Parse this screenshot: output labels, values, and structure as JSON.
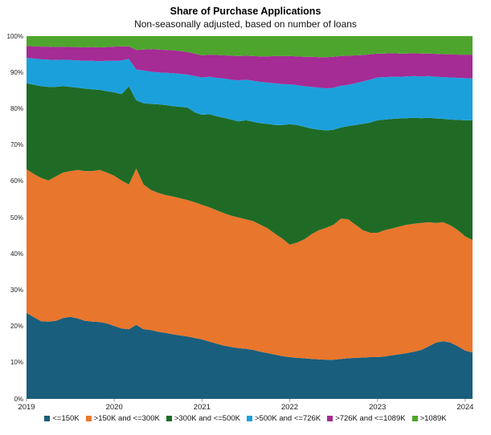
{
  "title": "Share of Purchase Applications",
  "subtitle": "Non-seasonally adjusted, based on number of loans",
  "chart_data": {
    "type": "area",
    "stacked": true,
    "unit": "percent share",
    "grid": false,
    "legend_position": "bottom",
    "ylim": [
      0,
      100
    ],
    "y_ticks": [
      {
        "label": "0%",
        "value": 0
      },
      {
        "label": "10%",
        "value": 10
      },
      {
        "label": "20%",
        "value": 20
      },
      {
        "label": "30%",
        "value": 30
      },
      {
        "label": "40%",
        "value": 40
      },
      {
        "label": "50%",
        "value": 50
      },
      {
        "label": "60%",
        "value": 60
      },
      {
        "label": "70%",
        "value": 70
      },
      {
        "label": "80%",
        "value": 80
      },
      {
        "label": "90%",
        "value": 90
      },
      {
        "label": "100%",
        "value": 100
      }
    ],
    "x_ticks": [
      {
        "label": "2019",
        "month_index": 0
      },
      {
        "label": "2020",
        "month_index": 12
      },
      {
        "label": "2021",
        "month_index": 24
      },
      {
        "label": "2022",
        "month_index": 36
      },
      {
        "label": "2023",
        "month_index": 48
      },
      {
        "label": "2024",
        "month_index": 60
      }
    ],
    "months": [
      "2019-01",
      "2019-02",
      "2019-03",
      "2019-04",
      "2019-05",
      "2019-06",
      "2019-07",
      "2019-08",
      "2019-09",
      "2019-10",
      "2019-11",
      "2019-12",
      "2020-01",
      "2020-02",
      "2020-03",
      "2020-04",
      "2020-05",
      "2020-06",
      "2020-07",
      "2020-08",
      "2020-09",
      "2020-10",
      "2020-11",
      "2020-12",
      "2021-01",
      "2021-02",
      "2021-03",
      "2021-04",
      "2021-05",
      "2021-06",
      "2021-07",
      "2021-08",
      "2021-09",
      "2021-10",
      "2021-11",
      "2021-12",
      "2022-01",
      "2022-02",
      "2022-03",
      "2022-04",
      "2022-05",
      "2022-06",
      "2022-07",
      "2022-08",
      "2022-09",
      "2022-10",
      "2022-11",
      "2022-12",
      "2023-01",
      "2023-02",
      "2023-03",
      "2023-04",
      "2023-05",
      "2023-06",
      "2023-07",
      "2023-08",
      "2023-09",
      "2023-10",
      "2023-11",
      "2023-12",
      "2024-01",
      "2024-02"
    ],
    "series": [
      {
        "name": "<=150K",
        "color": "#1A5E7D",
        "values": [
          23.7,
          22.5,
          21.4,
          21.3,
          21.5,
          22.3,
          22.6,
          22.2,
          21.5,
          21.3,
          21.2,
          20.8,
          20.1,
          19.4,
          19.2,
          20.4,
          19.2,
          19.0,
          18.5,
          18.2,
          17.8,
          17.5,
          17.2,
          16.8,
          16.4,
          15.8,
          15.2,
          14.7,
          14.3,
          14.0,
          13.8,
          13.5,
          13.0,
          12.6,
          12.2,
          11.8,
          11.5,
          11.3,
          11.2,
          11.0,
          10.9,
          10.8,
          10.8,
          11.0,
          11.2,
          11.3,
          11.4,
          11.5,
          11.5,
          11.7,
          12.0,
          12.3,
          12.6,
          13.0,
          13.5,
          14.5,
          15.5,
          15.9,
          15.5,
          14.5,
          13.3,
          12.8
        ]
      },
      {
        "name": ">150K and <=300K",
        "color": "#E8762C",
        "values": [
          39.6,
          39.5,
          39.5,
          38.9,
          39.8,
          40.1,
          40.2,
          40.9,
          41.3,
          41.5,
          41.9,
          41.6,
          41.4,
          40.8,
          39.9,
          43.1,
          39.9,
          38.6,
          38.3,
          38.0,
          38.0,
          37.8,
          37.6,
          37.4,
          37.1,
          37.0,
          36.8,
          36.5,
          36.2,
          36.0,
          35.7,
          35.5,
          35.0,
          34.4,
          33.3,
          32.4,
          31.0,
          31.8,
          32.8,
          34.4,
          35.6,
          36.4,
          37.2,
          38.7,
          38.3,
          36.7,
          35.1,
          34.3,
          34.3,
          34.8,
          35.0,
          35.2,
          35.4,
          35.3,
          35.0,
          34.2,
          33.0,
          32.8,
          32.3,
          32.0,
          31.5,
          31.0
        ]
      },
      {
        "name": ">300K and <=500K",
        "color": "#1F6B26",
        "values": [
          23.7,
          24.6,
          25.3,
          25.8,
          24.7,
          23.8,
          23.2,
          22.7,
          22.7,
          22.5,
          22.1,
          22.4,
          23.0,
          23.8,
          27.0,
          18.8,
          22.4,
          23.7,
          24.4,
          24.8,
          24.9,
          25.2,
          25.5,
          24.8,
          24.8,
          25.7,
          25.9,
          26.3,
          26.5,
          26.5,
          27.3,
          27.4,
          28.0,
          28.8,
          30.0,
          31.3,
          33.2,
          32.4,
          31.0,
          29.1,
          27.7,
          26.8,
          26.2,
          25.1,
          25.7,
          27.5,
          29.3,
          30.4,
          31.0,
          30.5,
          30.2,
          29.8,
          29.4,
          29.2,
          28.9,
          28.8,
          28.8,
          28.5,
          29.2,
          30.4,
          32.0,
          33.0
        ]
      },
      {
        "name": ">500K and <=726K",
        "color": "#1CA0DC",
        "values": [
          7.0,
          7.2,
          7.4,
          7.5,
          7.4,
          7.3,
          7.4,
          7.5,
          7.7,
          7.9,
          7.9,
          8.4,
          8.7,
          9.3,
          7.6,
          8.5,
          9.0,
          8.9,
          8.8,
          8.9,
          9.1,
          9.1,
          9.1,
          10.0,
          10.3,
          10.3,
          10.6,
          10.8,
          11.0,
          11.3,
          11.2,
          11.3,
          11.4,
          11.4,
          11.5,
          11.3,
          11.0,
          11.0,
          11.2,
          11.5,
          11.6,
          11.6,
          11.6,
          11.5,
          11.4,
          11.5,
          11.7,
          11.8,
          11.8,
          11.7,
          11.6,
          11.5,
          11.5,
          11.5,
          11.5,
          11.5,
          11.5,
          11.5,
          11.6,
          11.6,
          11.6,
          11.5
        ]
      },
      {
        "name": ">726K and <=1089K",
        "color": "#A52B95",
        "values": [
          3.3,
          3.4,
          3.5,
          3.6,
          3.6,
          3.6,
          3.6,
          3.7,
          3.7,
          3.8,
          3.8,
          3.8,
          3.9,
          3.9,
          3.5,
          5.4,
          5.8,
          6.2,
          6.3,
          6.3,
          6.3,
          6.3,
          6.2,
          6.2,
          6.1,
          6.1,
          6.3,
          6.4,
          6.6,
          6.7,
          6.6,
          6.8,
          7.0,
          7.2,
          7.5,
          7.7,
          7.8,
          7.9,
          8.1,
          8.3,
          8.4,
          8.6,
          8.5,
          8.2,
          8.0,
          7.7,
          7.3,
          7.0,
          6.6,
          6.5,
          6.5,
          6.4,
          6.3,
          6.3,
          6.3,
          6.2,
          6.3,
          6.3,
          6.4,
          6.4,
          6.5,
          6.6
        ]
      },
      {
        "name": ">1089K",
        "color": "#4EA52D",
        "values": [
          2.7,
          2.8,
          2.9,
          2.9,
          3.0,
          2.9,
          3.0,
          3.0,
          3.1,
          3.0,
          3.1,
          3.0,
          2.9,
          2.8,
          2.8,
          3.8,
          3.7,
          3.6,
          3.7,
          3.8,
          3.9,
          4.1,
          4.4,
          4.8,
          5.3,
          5.1,
          5.2,
          5.3,
          5.4,
          5.5,
          5.4,
          5.5,
          5.6,
          5.6,
          5.5,
          5.5,
          5.5,
          5.6,
          5.7,
          5.7,
          5.8,
          5.8,
          5.7,
          5.5,
          5.4,
          5.3,
          5.2,
          5.0,
          4.8,
          4.8,
          4.7,
          4.8,
          4.8,
          4.7,
          4.8,
          4.8,
          4.9,
          5.0,
          5.0,
          5.1,
          5.1,
          5.1
        ]
      }
    ]
  }
}
